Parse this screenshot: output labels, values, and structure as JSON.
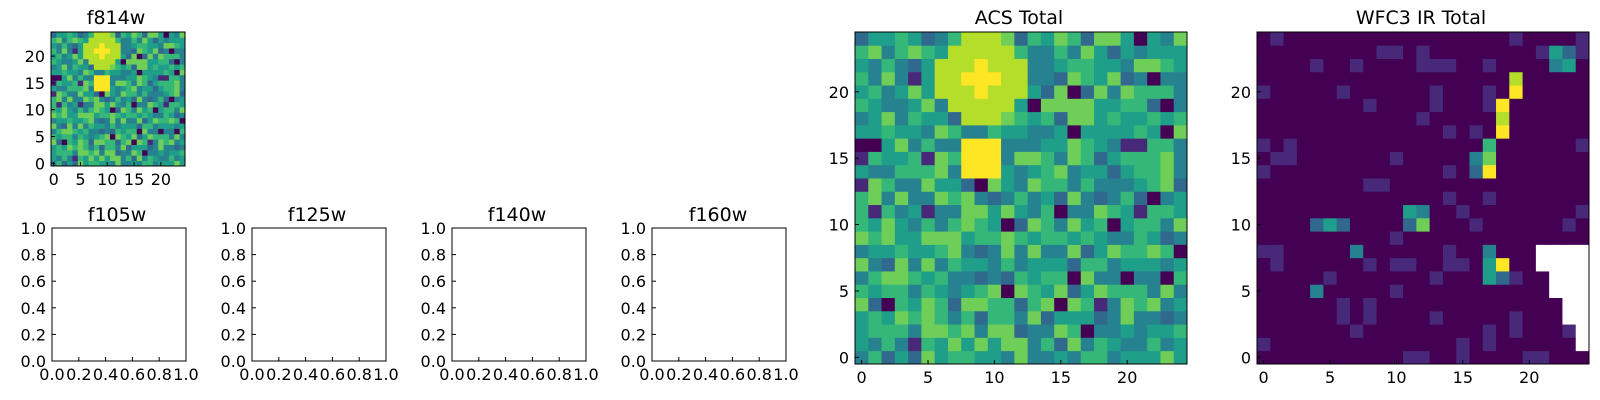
{
  "chart_data": [
    {
      "type": "heatmap",
      "title": "f814w",
      "x_ticks": [
        "0",
        "5",
        "10",
        "15",
        "20"
      ],
      "y_ticks": [
        "0",
        "5",
        "10",
        "15",
        "20"
      ],
      "xlim": [
        -0.5,
        24.5
      ],
      "ylim": [
        -0.5,
        24.5
      ],
      "colormap": "viridis",
      "grid": false
    },
    {
      "type": "empty",
      "title": "f105w",
      "x_ticks": [
        "0.0",
        "0.2",
        "0.4",
        "0.6",
        "0.8",
        "1.0"
      ],
      "y_ticks": [
        "0.0",
        "0.2",
        "0.4",
        "0.6",
        "0.8",
        "1.0"
      ],
      "xlim": [
        0,
        1
      ],
      "ylim": [
        0,
        1
      ]
    },
    {
      "type": "empty",
      "title": "f125w",
      "x_ticks": [
        "0.0",
        "0.2",
        "0.4",
        "0.6",
        "0.8",
        "1.0"
      ],
      "y_ticks": [
        "0.0",
        "0.2",
        "0.4",
        "0.6",
        "0.8",
        "1.0"
      ],
      "xlim": [
        0,
        1
      ],
      "ylim": [
        0,
        1
      ]
    },
    {
      "type": "empty",
      "title": "f140w",
      "x_ticks": [
        "0.0",
        "0.2",
        "0.4",
        "0.6",
        "0.8",
        "1.0"
      ],
      "y_ticks": [
        "0.0",
        "0.2",
        "0.4",
        "0.6",
        "0.8",
        "1.0"
      ],
      "xlim": [
        0,
        1
      ],
      "ylim": [
        0,
        1
      ]
    },
    {
      "type": "empty",
      "title": "f160w",
      "x_ticks": [
        "0.0",
        "0.2",
        "0.4",
        "0.6",
        "0.8",
        "1.0"
      ],
      "y_ticks": [
        "0.0",
        "0.2",
        "0.4",
        "0.6",
        "0.8",
        "1.0"
      ],
      "xlim": [
        0,
        1
      ],
      "ylim": [
        0,
        1
      ]
    },
    {
      "type": "heatmap",
      "title": "ACS Total",
      "x_ticks": [
        "0",
        "5",
        "10",
        "15",
        "20"
      ],
      "y_ticks": [
        "0",
        "5",
        "10",
        "15",
        "20"
      ],
      "xlim": [
        -0.5,
        24.5
      ],
      "ylim": [
        -0.5,
        24.5
      ],
      "colormap": "viridis",
      "grid": false
    },
    {
      "type": "heatmap",
      "title": "WFC3 IR Total",
      "x_ticks": [
        "0",
        "5",
        "10",
        "15",
        "20"
      ],
      "y_ticks": [
        "0",
        "5",
        "10",
        "15",
        "20"
      ],
      "xlim": [
        -0.5,
        24.5
      ],
      "ylim": [
        -0.5,
        24.5
      ],
      "colormap": "viridis",
      "grid": false
    }
  ]
}
